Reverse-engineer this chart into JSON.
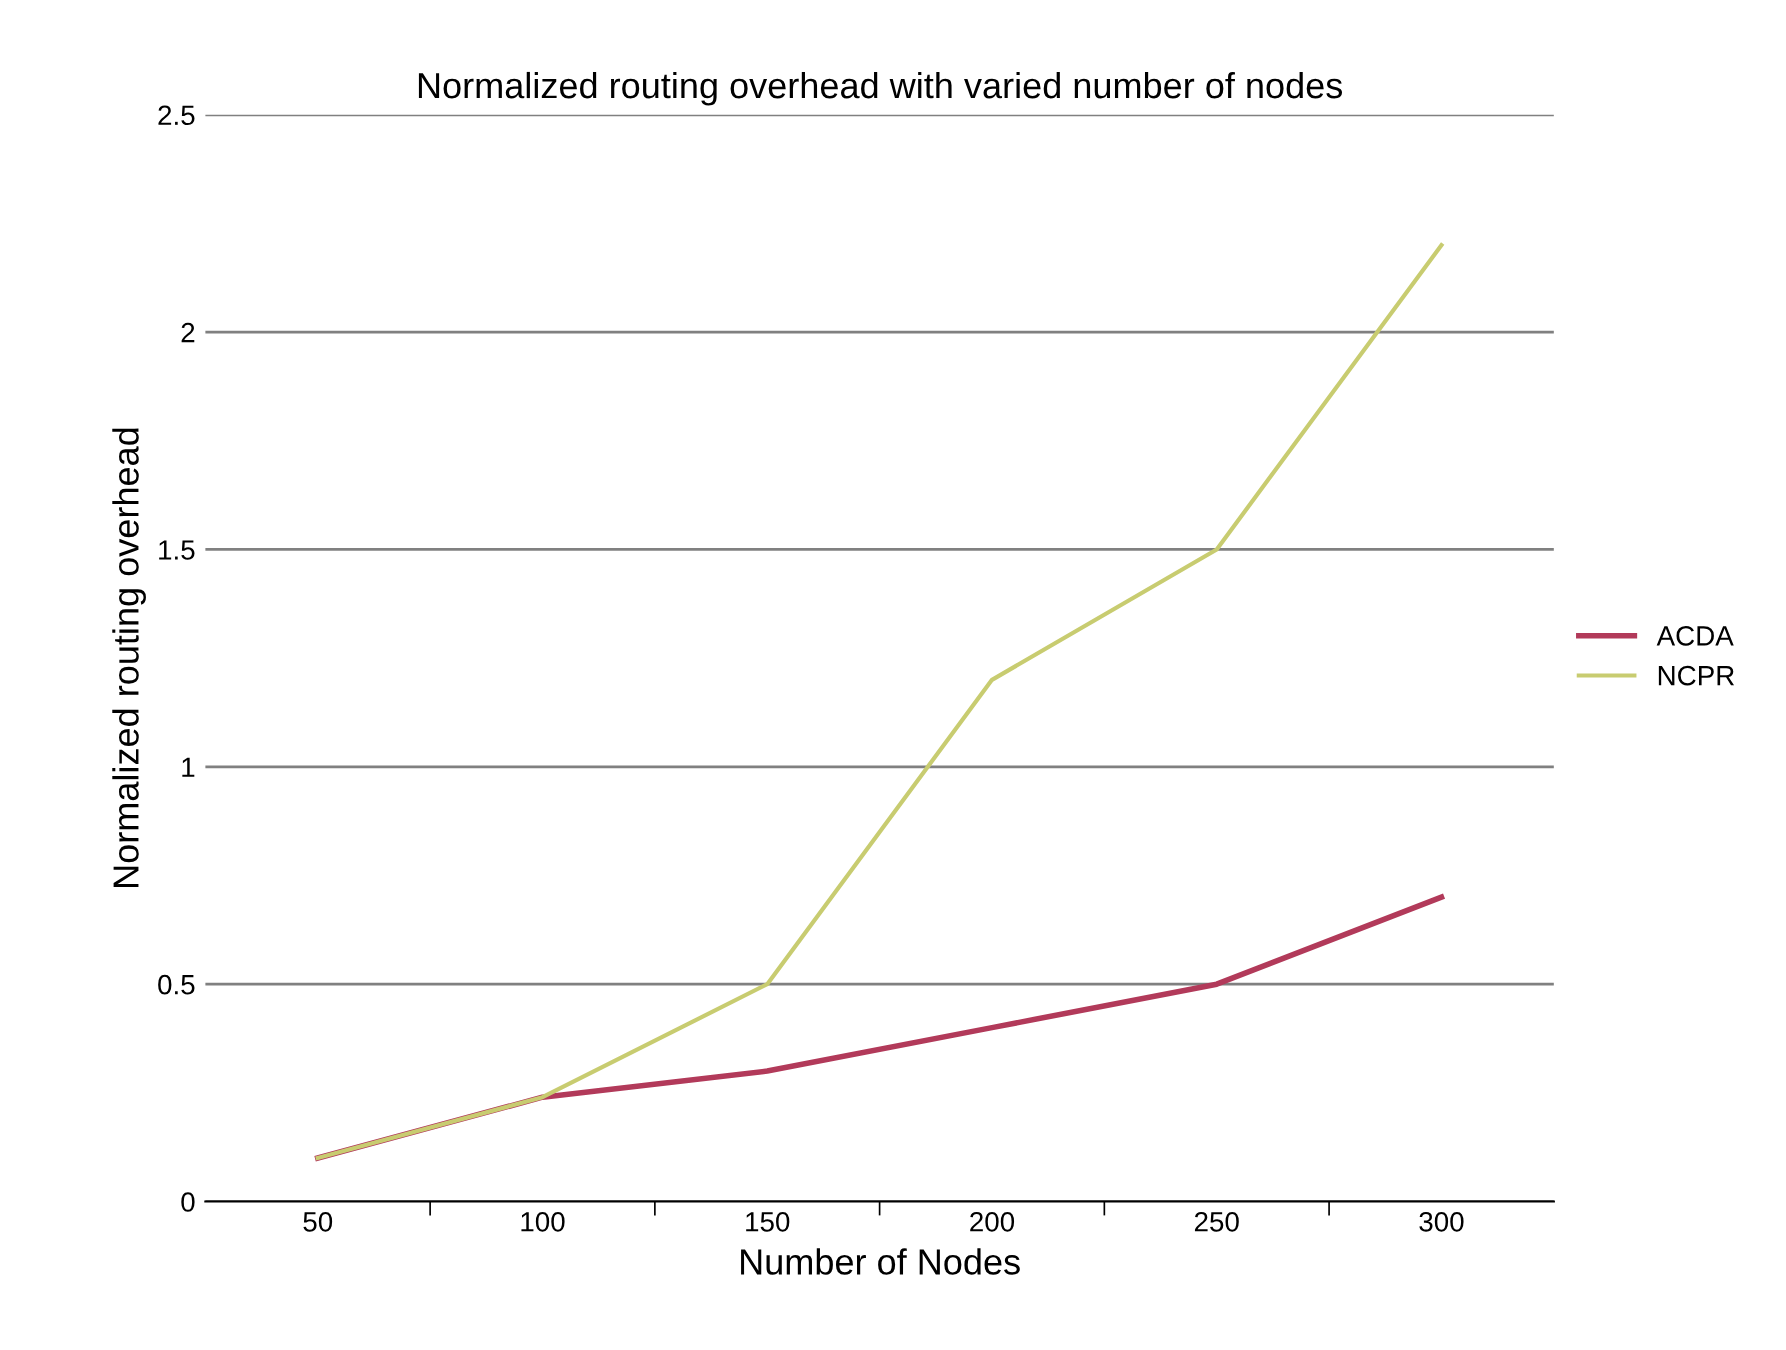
{
  "chart_data": {
    "type": "line",
    "title": "Normalized routing overhead with varied number of nodes",
    "xlabel": "Number of Nodes",
    "ylabel": "Normalized routing overhead",
    "categories": [
      "50",
      "100",
      "150",
      "200",
      "250",
      "300"
    ],
    "series": [
      {
        "name": "ACDA",
        "color": "#b23a5a",
        "values": [
          0.1,
          0.24,
          0.3,
          0.4,
          0.5,
          0.7
        ]
      },
      {
        "name": "NCPR",
        "color": "#c8cc70",
        "values": [
          0.1,
          0.24,
          0.5,
          1.2,
          1.5,
          2.2
        ]
      }
    ],
    "ylim": [
      0,
      2.5
    ],
    "yticks": [
      0,
      0.5,
      1,
      1.5,
      2,
      2.5
    ],
    "grid": "y",
    "legend": "right"
  }
}
